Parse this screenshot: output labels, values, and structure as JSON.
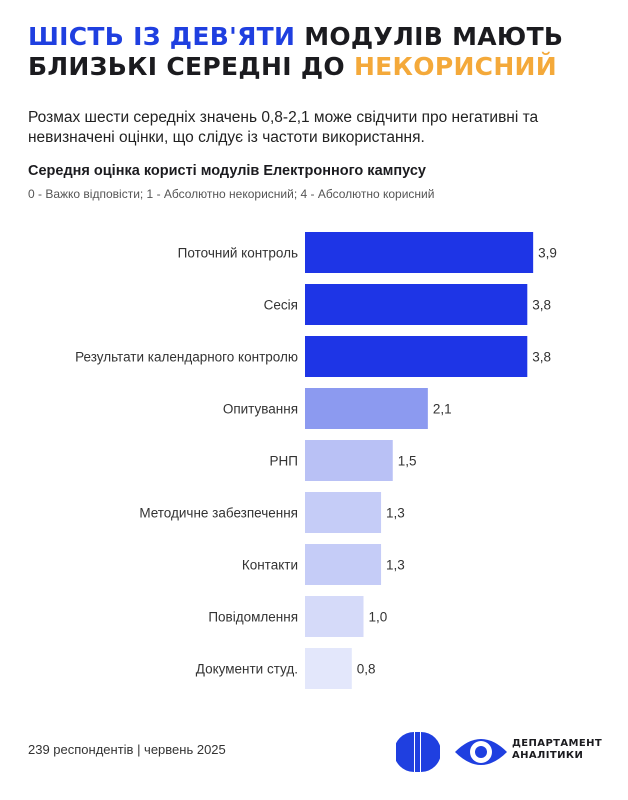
{
  "headline": {
    "part1": "ШІСТЬ ІЗ ДЕВ'ЯТИ",
    "part2": " МОДУЛІВ МАЮТЬ",
    "part3": "БЛИЗЬКІ СЕРЕДНІ ДО ",
    "part4": "НЕКОРИСНИЙ"
  },
  "lead": "Розмах шести середніх значень 0,8-2,1 може свідчити про негативні та невизначені оцінки, що слідує із частоти використання.",
  "colors": {
    "accent": "#1f3fe0",
    "highlight": "#f4a93a",
    "bar_shades": [
      "#1e35e6",
      "#1e35e6",
      "#1e35e6",
      "#8c9af0",
      "#b9c1f5",
      "#c5ccf7",
      "#c5ccf7",
      "#d5daf9",
      "#e3e7fb"
    ]
  },
  "chart_data": {
    "type": "bar",
    "orientation": "horizontal",
    "title": "Середня оцінка користі модулів Електронного кампусу",
    "subtitle": "0 - Важко відповісти; 1 - Абсолютно некорисний; 4 - Абсолютно корисний",
    "categories": [
      "Поточний контроль",
      "Сесія",
      "Результати календарного контролю",
      "Опитування",
      "РНП",
      "Методичне забезпечення",
      "Контакти",
      "Повідомлення",
      "Документи студ."
    ],
    "values": [
      3.9,
      3.8,
      3.8,
      2.1,
      1.5,
      1.3,
      1.3,
      1.0,
      0.8
    ],
    "value_labels": [
      "3,9",
      "3,8",
      "3,8",
      "2,1",
      "1,5",
      "1,3",
      "1,3",
      "1,0",
      "0,8"
    ],
    "xlim": [
      0,
      4
    ],
    "grid": false,
    "legend": "none"
  },
  "footer": "239 респондентів | червень 2025",
  "brand": {
    "line1": "ДЕПАРТАМЕНТ",
    "line2": "АНАЛІТИКИ",
    "icons": [
      "logo-f-icon",
      "eye-logo-icon"
    ]
  }
}
